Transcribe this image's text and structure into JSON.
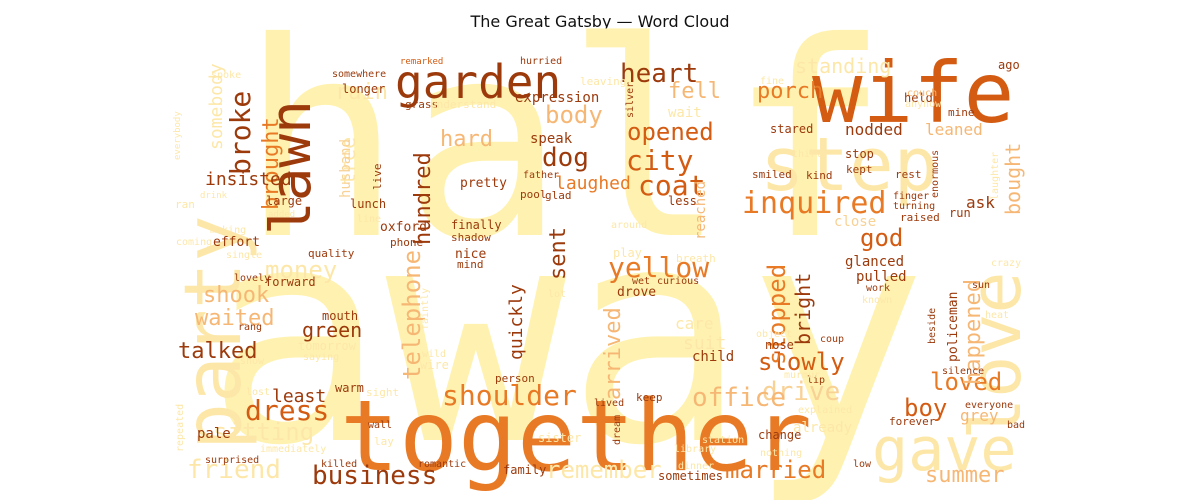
{
  "title": "The Great Gatsby — Word Cloud",
  "palette": {
    "light": "#fff2b0",
    "pale": "#fde7a8",
    "wheat": "#f8d195",
    "tan": "#f6b775",
    "orange": "#e87a26",
    "burnt": "#d35b12",
    "brown": "#9c3a0c"
  },
  "chart_data": {
    "type": "wordcloud",
    "title": "The Great Gatsby — Word Cloud",
    "words": [
      {
        "text": "away",
        "weight": 100,
        "color": "#fff2b0"
      },
      {
        "text": "half",
        "weight": 92,
        "color": "#fff2b0"
      },
      {
        "text": "together",
        "weight": 55,
        "color": "#e87a26"
      },
      {
        "text": "wife",
        "weight": 45,
        "color": "#d35b12"
      },
      {
        "text": "party",
        "weight": 42,
        "color": "#fde7a8"
      },
      {
        "text": "step",
        "weight": 38,
        "color": "#fde7a8"
      },
      {
        "text": "love",
        "weight": 36,
        "color": "#fde7a8"
      },
      {
        "text": "gave",
        "weight": 33,
        "color": "#fde7a8"
      },
      {
        "text": "lawn",
        "weight": 32,
        "color": "#9c3a0c"
      },
      {
        "text": "garden",
        "weight": 28,
        "color": "#9c3a0c"
      },
      {
        "text": "inquired",
        "weight": 20,
        "color": "#e87a26"
      },
      {
        "text": "shoulder",
        "weight": 18,
        "color": "#e87a26"
      },
      {
        "text": "yellow",
        "weight": 18,
        "color": "#e87a26"
      },
      {
        "text": "city",
        "weight": 17,
        "color": "#d35b12"
      },
      {
        "text": "coat",
        "weight": 17,
        "color": "#d35b12"
      },
      {
        "text": "dress",
        "weight": 17,
        "color": "#d35b12"
      },
      {
        "text": "business",
        "weight": 17,
        "color": "#9c3a0c"
      },
      {
        "text": "broke",
        "weight": 16,
        "color": "#9c3a0c"
      },
      {
        "text": "heart",
        "weight": 16,
        "color": "#9c3a0c"
      },
      {
        "text": "dog",
        "weight": 16,
        "color": "#9c3a0c"
      },
      {
        "text": "opened",
        "weight": 16,
        "color": "#d35b12"
      },
      {
        "text": "loved",
        "weight": 16,
        "color": "#e87a26"
      },
      {
        "text": "married",
        "weight": 16,
        "color": "#e87a26"
      },
      {
        "text": "slowly",
        "weight": 16,
        "color": "#d35b12"
      },
      {
        "text": "summer",
        "weight": 15,
        "color": "#f6b775"
      },
      {
        "text": "drive",
        "weight": 16,
        "color": "#f8d195"
      },
      {
        "text": "office",
        "weight": 16,
        "color": "#f6b775"
      },
      {
        "text": "friend",
        "weight": 16,
        "color": "#fde7a8"
      },
      {
        "text": "remember",
        "weight": 15,
        "color": "#fde7a8"
      },
      {
        "text": "sitting",
        "weight": 15,
        "color": "#fde7a8"
      },
      {
        "text": "money",
        "weight": 15,
        "color": "#fde7a8"
      },
      {
        "text": "god",
        "weight": 15,
        "color": "#d35b12"
      },
      {
        "text": "boy",
        "weight": 15,
        "color": "#d35b12"
      },
      {
        "text": "talked",
        "weight": 14,
        "color": "#9c3a0c"
      },
      {
        "text": "shook",
        "weight": 14,
        "color": "#f6b775"
      },
      {
        "text": "body",
        "weight": 14,
        "color": "#f6b775"
      },
      {
        "text": "hard",
        "weight": 14,
        "color": "#f6b775"
      },
      {
        "text": "fell",
        "weight": 14,
        "color": "#f6b775"
      },
      {
        "text": "rain",
        "weight": 14,
        "color": "#fde7a8"
      },
      {
        "text": "waited",
        "weight": 13,
        "color": "#f6b775"
      },
      {
        "text": "porch",
        "weight": 13,
        "color": "#e87a26"
      },
      {
        "text": "standing",
        "weight": 13,
        "color": "#fde7a8"
      },
      {
        "text": "insisted",
        "weight": 12,
        "color": "#9c3a0c"
      },
      {
        "text": "brought",
        "weight": 13,
        "color": "#e87a26"
      },
      {
        "text": "hundred",
        "weight": 13,
        "color": "#9c3a0c"
      },
      {
        "text": "laughed",
        "weight": 12,
        "color": "#e87a26"
      },
      {
        "text": "telephone",
        "weight": 14,
        "color": "#f6b775"
      },
      {
        "text": "sent",
        "weight": 13,
        "color": "#9c3a0c"
      },
      {
        "text": "arrived",
        "weight": 13,
        "color": "#f6b775"
      },
      {
        "text": "stopped",
        "weight": 14,
        "color": "#e87a26"
      },
      {
        "text": "bright",
        "weight": 13,
        "color": "#9c3a0c"
      },
      {
        "text": "happened",
        "weight": 13,
        "color": "#f6b775"
      },
      {
        "text": "bought",
        "weight": 13,
        "color": "#f6b775"
      },
      {
        "text": "green",
        "weight": 12,
        "color": "#9c3a0c"
      },
      {
        "text": "least",
        "weight": 12,
        "color": "#9c3a0c"
      },
      {
        "text": "quickly",
        "weight": 12,
        "color": "#9c3a0c"
      },
      {
        "text": "expression",
        "weight": 10,
        "color": "#9c3a0c"
      },
      {
        "text": "nodded",
        "weight": 11,
        "color": "#9c3a0c"
      },
      {
        "text": "leaned",
        "weight": 11,
        "color": "#f6b775"
      },
      {
        "text": "ask",
        "weight": 11,
        "color": "#9c3a0c"
      },
      {
        "text": "grey",
        "weight": 11,
        "color": "#f6b775"
      },
      {
        "text": "somebody",
        "weight": 11,
        "color": "#fde7a8"
      },
      {
        "text": "tree",
        "weight": 12,
        "color": "#fde7a8"
      },
      {
        "text": "suit",
        "weight": 11,
        "color": "#fde7a8"
      },
      {
        "text": "care",
        "weight": 10,
        "color": "#fde7a8"
      },
      {
        "text": "glanced",
        "weight": 10,
        "color": "#9c3a0c"
      },
      {
        "text": "pulled",
        "weight": 10,
        "color": "#9c3a0c"
      },
      {
        "text": "close",
        "weight": 10,
        "color": "#f8d195"
      },
      {
        "text": "policeman",
        "weight": 9,
        "color": "#9c3a0c"
      },
      {
        "text": "already",
        "weight": 10,
        "color": "#fde7a8"
      },
      {
        "text": "child",
        "weight": 9,
        "color": "#9c3a0c"
      },
      {
        "text": "speak",
        "weight": 9,
        "color": "#9c3a0c"
      },
      {
        "text": "pretty",
        "weight": 9,
        "color": "#9c3a0c"
      },
      {
        "text": "finally",
        "weight": 8,
        "color": "#9c3a0c"
      },
      {
        "text": "oxford",
        "weight": 8,
        "color": "#9c3a0c"
      },
      {
        "text": "phone",
        "weight": 7,
        "color": "#9c3a0c"
      },
      {
        "text": "quality",
        "weight": 7,
        "color": "#9c3a0c"
      },
      {
        "text": "forward",
        "weight": 8,
        "color": "#9c3a0c"
      },
      {
        "text": "effort",
        "weight": 8,
        "color": "#9c3a0c"
      },
      {
        "text": "husband",
        "weight": 8,
        "color": "#f8d195"
      },
      {
        "text": "lunch",
        "weight": 8,
        "color": "#9c3a0c"
      },
      {
        "text": "large",
        "weight": 8,
        "color": "#9c3a0c"
      },
      {
        "text": "longer",
        "weight": 8,
        "color": "#9c3a0c"
      },
      {
        "text": "hurried",
        "weight": 7,
        "color": "#9c3a0c"
      },
      {
        "text": "remarked",
        "weight": 6,
        "color": "#d35b12"
      },
      {
        "text": "somewhere",
        "weight": 6,
        "color": "#9c3a0c"
      },
      {
        "text": "leaving",
        "weight": 7,
        "color": "#fde7a8"
      },
      {
        "text": "grass",
        "weight": 7,
        "color": "#9c3a0c"
      },
      {
        "text": "understand",
        "weight": 7,
        "color": "#fde7a8"
      },
      {
        "text": "stared",
        "weight": 8,
        "color": "#9c3a0c"
      },
      {
        "text": "stop",
        "weight": 8,
        "color": "#9c3a0c"
      },
      {
        "text": "kept",
        "weight": 7,
        "color": "#9c3a0c"
      },
      {
        "text": "smiled",
        "weight": 7,
        "color": "#9c3a0c"
      },
      {
        "text": "kind",
        "weight": 7,
        "color": "#9c3a0c"
      },
      {
        "text": "rest",
        "weight": 7,
        "color": "#9c3a0c"
      },
      {
        "text": "run",
        "weight": 8,
        "color": "#9c3a0c"
      },
      {
        "text": "raised",
        "weight": 7,
        "color": "#9c3a0c"
      },
      {
        "text": "held",
        "weight": 7,
        "color": "#9c3a0c"
      },
      {
        "text": "ago",
        "weight": 7,
        "color": "#9c3a0c"
      },
      {
        "text": "couch",
        "weight": 6,
        "color": "#f6b775"
      },
      {
        "text": "mine",
        "weight": 6,
        "color": "#9c3a0c"
      },
      {
        "text": "fine",
        "weight": 6,
        "color": "#fde7a8"
      },
      {
        "text": "wait",
        "weight": 9,
        "color": "#fde7a8"
      },
      {
        "text": "reached",
        "weight": 9,
        "color": "#f6b775"
      },
      {
        "text": "less",
        "weight": 7,
        "color": "#9c3a0c"
      },
      {
        "text": "father",
        "weight": 6,
        "color": "#9c3a0c"
      },
      {
        "text": "pool",
        "weight": 7,
        "color": "#9c3a0c"
      },
      {
        "text": "glad",
        "weight": 7,
        "color": "#9c3a0c"
      },
      {
        "text": "live",
        "weight": 7,
        "color": "#9c3a0c"
      },
      {
        "text": "shadow",
        "weight": 7,
        "color": "#9c3a0c"
      },
      {
        "text": "nice",
        "weight": 8,
        "color": "#9c3a0c"
      },
      {
        "text": "mind",
        "weight": 7,
        "color": "#9c3a0c"
      },
      {
        "text": "play",
        "weight": 7,
        "color": "#fde7a8"
      },
      {
        "text": "breath",
        "weight": 7,
        "color": "#fde7a8"
      },
      {
        "text": "drove",
        "weight": 8,
        "color": "#9c3a0c"
      },
      {
        "text": "wet",
        "weight": 6,
        "color": "#9c3a0c"
      },
      {
        "text": "curious",
        "weight": 6,
        "color": "#9c3a0c"
      },
      {
        "text": "lot",
        "weight": 6,
        "color": "#fde7a8"
      },
      {
        "text": "mouth",
        "weight": 7,
        "color": "#9c3a0c"
      },
      {
        "text": "tomorrow",
        "weight": 7,
        "color": "#fde7a8"
      },
      {
        "text": "saying",
        "weight": 6,
        "color": "#fde7a8"
      },
      {
        "text": "faintly",
        "weight": 6,
        "color": "#fde7a8"
      },
      {
        "text": "wild",
        "weight": 6,
        "color": "#fde7a8"
      },
      {
        "text": "wire",
        "weight": 7,
        "color": "#fde7a8"
      },
      {
        "text": "person",
        "weight": 7,
        "color": "#9c3a0c"
      },
      {
        "text": "warm",
        "weight": 7,
        "color": "#9c3a0c"
      },
      {
        "text": "sight",
        "weight": 7,
        "color": "#fde7a8"
      },
      {
        "text": "lost",
        "weight": 6,
        "color": "#fde7a8"
      },
      {
        "text": "keep",
        "weight": 7,
        "color": "#9c3a0c"
      },
      {
        "text": "lived",
        "weight": 6,
        "color": "#9c3a0c"
      },
      {
        "text": "dream",
        "weight": 6,
        "color": "#9c3a0c"
      },
      {
        "text": "library",
        "weight": 6,
        "color": "#fde7a8"
      },
      {
        "text": "station",
        "weight": 6,
        "color": "#fde7a8"
      },
      {
        "text": "sister",
        "weight": 7,
        "color": "#fde7a8"
      },
      {
        "text": "wall",
        "weight": 6,
        "color": "#9c3a0c"
      },
      {
        "text": "lay",
        "weight": 6,
        "color": "#fde7a8"
      },
      {
        "text": "pale",
        "weight": 8,
        "color": "#9c3a0c"
      },
      {
        "text": "repeated",
        "weight": 6,
        "color": "#fde7a8"
      },
      {
        "text": "surprised",
        "weight": 6,
        "color": "#9c3a0c"
      },
      {
        "text": "immediately",
        "weight": 6,
        "color": "#fde7a8"
      },
      {
        "text": "killed",
        "weight": 6,
        "color": "#9c3a0c"
      },
      {
        "text": "romantic",
        "weight": 6,
        "color": "#9c3a0c"
      },
      {
        "text": "family",
        "weight": 7,
        "color": "#9c3a0c"
      },
      {
        "text": "sometimes",
        "weight": 7,
        "color": "#9c3a0c"
      },
      {
        "text": "dinner",
        "weight": 6,
        "color": "#fde7a8"
      },
      {
        "text": "nothing",
        "weight": 6,
        "color": "#fde7a8"
      },
      {
        "text": "low",
        "weight": 6,
        "color": "#9c3a0c"
      },
      {
        "text": "change",
        "weight": 7,
        "color": "#9c3a0c"
      },
      {
        "text": "explained",
        "weight": 6,
        "color": "#fde7a8"
      },
      {
        "text": "forever",
        "weight": 7,
        "color": "#9c3a0c"
      },
      {
        "text": "everyone",
        "weight": 6,
        "color": "#9c3a0c"
      },
      {
        "text": "bad",
        "weight": 6,
        "color": "#9c3a0c"
      },
      {
        "text": "silence",
        "weight": 6,
        "color": "#9c3a0c"
      },
      {
        "text": "sun",
        "weight": 6,
        "color": "#9c3a0c"
      },
      {
        "text": "beside",
        "weight": 6,
        "color": "#9c3a0c"
      },
      {
        "text": "heat",
        "weight": 6,
        "color": "#fde7a8"
      },
      {
        "text": "coup",
        "weight": 6,
        "color": "#9c3a0c"
      },
      {
        "text": "lip",
        "weight": 6,
        "color": "#9c3a0c"
      },
      {
        "text": "murmur",
        "weight": 6,
        "color": "#fde7a8"
      },
      {
        "text": "object",
        "weight": 6,
        "color": "#fde7a8"
      },
      {
        "text": "nose",
        "weight": 7,
        "color": "#9c3a0c"
      },
      {
        "text": "work",
        "weight": 6,
        "color": "#9c3a0c"
      },
      {
        "text": "known",
        "weight": 6,
        "color": "#fde7a8"
      },
      {
        "text": "crazy",
        "weight": 6,
        "color": "#fde7a8"
      },
      {
        "text": "thirty",
        "weight": 6,
        "color": "#fde7a8"
      },
      {
        "text": "finger",
        "weight": 6,
        "color": "#9c3a0c"
      },
      {
        "text": "turning",
        "weight": 6,
        "color": "#9c3a0c"
      },
      {
        "text": "enormous",
        "weight": 6,
        "color": "#9c3a0c"
      },
      {
        "text": "laughter",
        "weight": 6,
        "color": "#fde7a8"
      },
      {
        "text": "anyhow",
        "weight": 6,
        "color": "#fde7a8"
      },
      {
        "text": "silver",
        "weight": 6,
        "color": "#9c3a0c"
      },
      {
        "text": "spoke",
        "weight": 6,
        "color": "#fde7a8"
      },
      {
        "text": "everybody",
        "weight": 6,
        "color": "#fde7a8"
      },
      {
        "text": "drink",
        "weight": 6,
        "color": "#fde7a8"
      },
      {
        "text": "added",
        "weight": 6,
        "color": "#fde7a8"
      },
      {
        "text": "ran",
        "weight": 7,
        "color": "#fde7a8"
      },
      {
        "text": "making",
        "weight": 6,
        "color": "#fde7a8"
      },
      {
        "text": "coming",
        "weight": 6,
        "color": "#fde7a8"
      },
      {
        "text": "single",
        "weight": 6,
        "color": "#fde7a8"
      },
      {
        "text": "lovely",
        "weight": 6,
        "color": "#9c3a0c"
      },
      {
        "text": "rang",
        "weight": 6,
        "color": "#9c3a0c"
      },
      {
        "text": "show",
        "weight": 6,
        "color": "#fde7a8"
      },
      {
        "text": "line",
        "weight": 6,
        "color": "#fde7a8"
      },
      {
        "text": "around",
        "weight": 6,
        "color": "#fde7a8"
      }
    ]
  }
}
